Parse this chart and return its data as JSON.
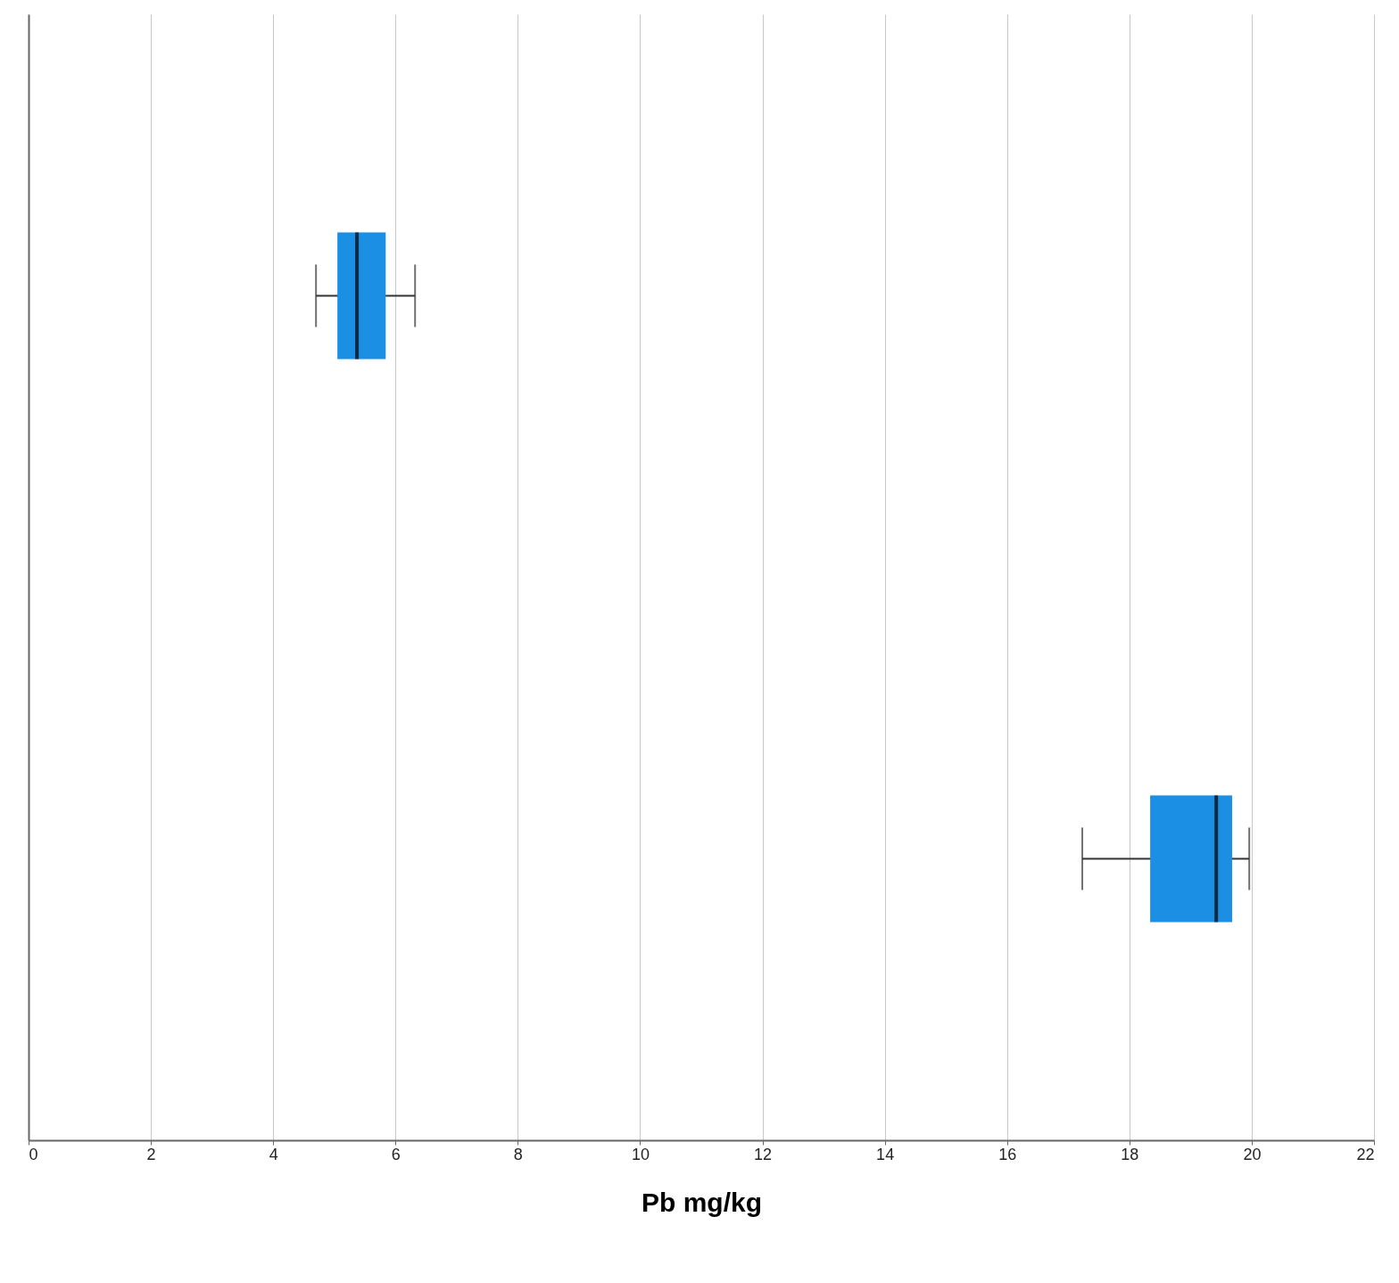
{
  "chart_data": {
    "type": "box",
    "orientation": "horizontal",
    "categories": [
      null,
      null
    ],
    "xlabel": "Pb mg/kg",
    "xlim": [
      0,
      22
    ],
    "xticks": [
      0,
      2,
      4,
      6,
      8,
      10,
      12,
      14,
      16,
      18,
      20,
      22
    ],
    "grid": "x",
    "series": [
      {
        "color": "#1a8fe3",
        "boxes": [
          {
            "low": 4.7,
            "q1": 5.05,
            "median": 5.37,
            "q3": 5.84,
            "high": 6.32
          },
          {
            "low": 17.23,
            "q1": 18.34,
            "median": 19.42,
            "q3": 19.68,
            "high": 19.96
          }
        ]
      }
    ]
  }
}
